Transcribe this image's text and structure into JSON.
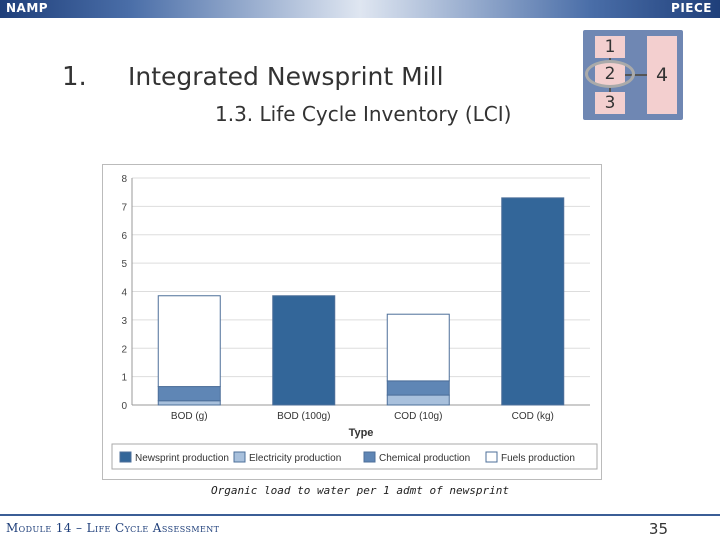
{
  "header": {
    "left_brand": "NAMP",
    "right_brand": "PIECE"
  },
  "section": {
    "number": "1.",
    "title": "Integrated Newsprint Mill",
    "subtitle": "1.3. Life Cycle Inventory (LCI)"
  },
  "steps": [
    "1",
    "2",
    "3",
    "4"
  ],
  "caption": "Organic load to water per 1 admt of newsprint",
  "footer": {
    "module": "Module 14 – Life Cycle Assessment",
    "page": "35"
  },
  "colors": {
    "newsprint": "#336699",
    "electricity": "#a8c0dc",
    "chemical": "#5f86b5",
    "fuels": "#ffffff",
    "header_dark": "#1f3f7a"
  },
  "chart_data": {
    "type": "bar",
    "stacked": true,
    "categories": [
      "BOD (g)",
      "BOD (100g)",
      "COD (10g)",
      "COD (kg)"
    ],
    "series": [
      {
        "name": "Newsprint production",
        "values": [
          0,
          3.85,
          0,
          7.3
        ]
      },
      {
        "name": "Electricity production",
        "values": [
          0.15,
          0,
          0.35,
          0
        ]
      },
      {
        "name": "Chemical production",
        "values": [
          0.5,
          0,
          0.5,
          0
        ]
      },
      {
        "name": "Fuels production",
        "values": [
          3.2,
          0,
          2.35,
          0
        ]
      }
    ],
    "xlabel": "Type",
    "ylabel": "",
    "ylim": [
      0,
      8
    ],
    "yticks": [
      0,
      1,
      2,
      3,
      4,
      5,
      6,
      7,
      8
    ],
    "grid": true,
    "legend": "bottom"
  }
}
